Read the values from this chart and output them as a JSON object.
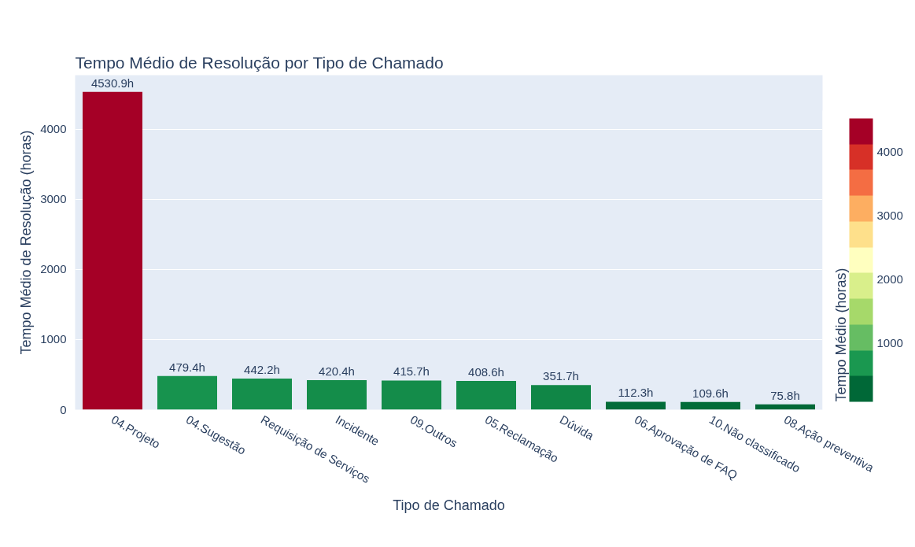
{
  "chart_data": {
    "type": "bar",
    "title": "Tempo Médio de Resolução por Tipo de Chamado",
    "xlabel": "Tipo de Chamado",
    "ylabel": "Tempo Médio de Resolução (horas)",
    "clabel": "Tempo Médio (horas)",
    "categories": [
      "04.Projeto",
      "04.Sugestão",
      "Requisição de Serviços",
      "Incidente",
      "09.Outros",
      "05.Reclamação",
      "Dúvida",
      "06.Aprovação de FAQ",
      "10.Não classificado",
      "08.Ação preventiva"
    ],
    "values": [
      4530.9,
      479.4,
      442.2,
      420.4,
      415.7,
      408.6,
      351.7,
      112.3,
      109.6,
      75.8
    ],
    "colors": [
      "#a50026",
      "#17934e",
      "#158f4c",
      "#148d4a",
      "#148c4a",
      "#138c4a",
      "#108646",
      "#026c39",
      "#026c39",
      "#006837"
    ],
    "value_labels": [
      "4530.9h",
      "479.4h",
      "442.2h",
      "420.4h",
      "415.7h",
      "408.6h",
      "351.7h",
      "112.3h",
      "109.6h",
      "75.8h"
    ],
    "ylim": [
      0,
      4769
    ],
    "yticks": [
      0,
      1000,
      2000,
      3000,
      4000
    ],
    "grid": "y",
    "clim": [
      75.8,
      4530.9
    ],
    "cticks": [
      1000,
      2000,
      3000,
      4000
    ]
  }
}
